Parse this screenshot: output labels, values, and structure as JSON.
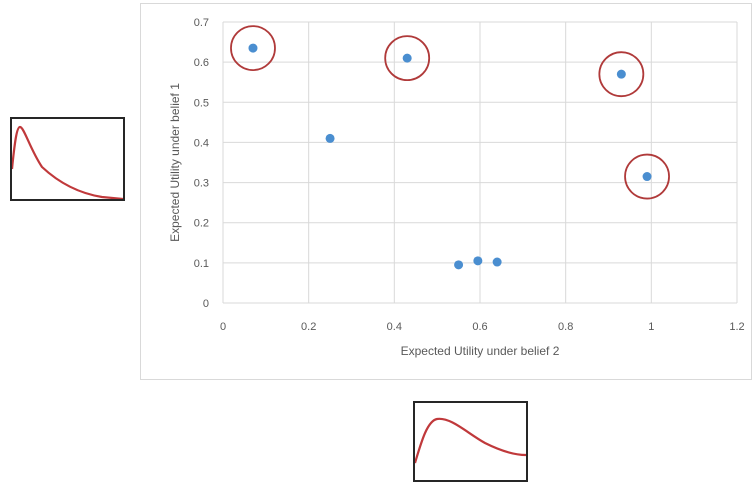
{
  "chart_data": {
    "type": "scatter",
    "title": "",
    "xlabel": "Expected Utility under belief 2",
    "ylabel": "Expected Utility under belief 1",
    "xlim": [
      0,
      1.2
    ],
    "ylim": [
      0,
      0.7
    ],
    "xticks": [
      "0",
      "0.2",
      "0.4",
      "0.6",
      "0.8",
      "1",
      "1.2"
    ],
    "yticks": [
      "0",
      "0.1",
      "0.2",
      "0.3",
      "0.4",
      "0.5",
      "0.6",
      "0.7"
    ],
    "grid": true,
    "legend": "none",
    "series": [
      {
        "color": "#4a8ed0",
        "points": [
          {
            "x": 0.07,
            "y": 0.635,
            "circled": true
          },
          {
            "x": 0.43,
            "y": 0.61,
            "circled": true
          },
          {
            "x": 0.93,
            "y": 0.57,
            "circled": true
          },
          {
            "x": 0.99,
            "y": 0.315,
            "circled": true
          },
          {
            "x": 0.25,
            "y": 0.41,
            "circled": false
          },
          {
            "x": 0.55,
            "y": 0.095,
            "circled": false
          },
          {
            "x": 0.595,
            "y": 0.105,
            "circled": false
          },
          {
            "x": 0.64,
            "y": 0.102,
            "circled": false
          }
        ]
      }
    ],
    "highlight_color": "#b03a3a"
  },
  "insets": {
    "left_curve": "belief-1-distribution-curve",
    "bottom_curve": "belief-2-distribution-curve",
    "curve_color": "#c0393b"
  }
}
